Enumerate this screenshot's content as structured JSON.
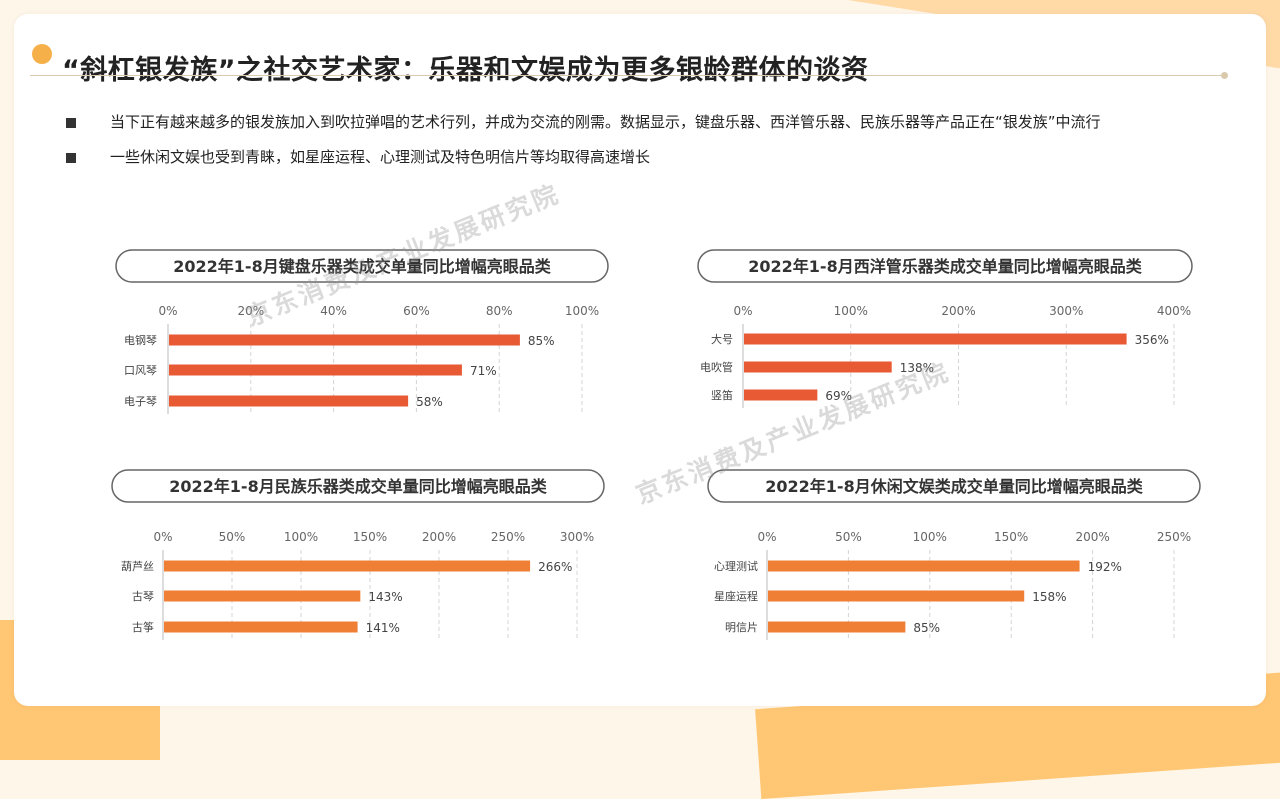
{
  "title": "“斜杠银发族”之社交艺术家：乐器和文娱成为更多银龄群体的谈资",
  "bullets": [
    "当下正有越来越多的银发族加入到吹拉弹唱的艺术行列，并成为交流的刚需。数据显示，键盘乐器、西洋管乐器、民族乐器等产品正在“银发族”中流行",
    "一些休闲文娱也受到青睐，如星座运程、心理测试及特色明信片等均取得高速增长"
  ],
  "watermark": "京东消费及产业发展研究院",
  "colors": {
    "bar_red": "#e85a34",
    "bar_orange": "#ef7f35",
    "accent": "#f6b04a",
    "grid": "#d4d4d4"
  },
  "chart_data": [
    {
      "type": "bar",
      "title": "2022年1-8月键盘乐器类成交单量同比增幅亮眼品类",
      "categories": [
        "电钢琴",
        "口风琴",
        "电子琴"
      ],
      "values": [
        85,
        71,
        58
      ],
      "value_labels": [
        "85%",
        "71%",
        "58%"
      ],
      "xticks": [
        "0%",
        "20%",
        "40%",
        "60%",
        "80%",
        "100%"
      ],
      "xlim": [
        0,
        100
      ],
      "color": "#e85a34",
      "orientation": "horizontal",
      "grid": true
    },
    {
      "type": "bar",
      "title": "2022年1-8月西洋管乐器类成交单量同比增幅亮眼品类",
      "categories": [
        "大号",
        "电吹管",
        "竖笛"
      ],
      "values": [
        356,
        138,
        69
      ],
      "value_labels": [
        "356%",
        "138%",
        "69%"
      ],
      "xticks": [
        "0%",
        "100%",
        "200%",
        "300%",
        "400%"
      ],
      "xlim": [
        0,
        400
      ],
      "color": "#e85a34",
      "orientation": "horizontal",
      "grid": true
    },
    {
      "type": "bar",
      "title": "2022年1-8月民族乐器类成交单量同比增幅亮眼品类",
      "categories": [
        "葫芦丝",
        "古琴",
        "古筝"
      ],
      "values": [
        266,
        143,
        141
      ],
      "value_labels": [
        "266%",
        "143%",
        "141%"
      ],
      "xticks": [
        "0%",
        "50%",
        "100%",
        "150%",
        "200%",
        "250%",
        "300%"
      ],
      "xlim": [
        0,
        300
      ],
      "color": "#ef7f35",
      "orientation": "horizontal",
      "grid": true
    },
    {
      "type": "bar",
      "title": "2022年1-8月休闲文娱类成交单量同比增幅亮眼品类",
      "categories": [
        "心理测试",
        "星座运程",
        "明信片"
      ],
      "values": [
        192,
        158,
        85
      ],
      "value_labels": [
        "192%",
        "158%",
        "85%"
      ],
      "xticks": [
        "0%",
        "50%",
        "100%",
        "150%",
        "200%",
        "250%"
      ],
      "xlim": [
        0,
        250
      ],
      "color": "#ef7f35",
      "orientation": "horizontal",
      "grid": true
    }
  ]
}
